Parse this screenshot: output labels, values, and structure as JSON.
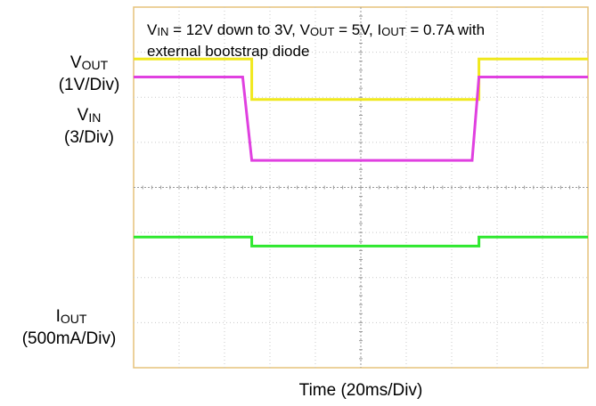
{
  "chart_data": {
    "type": "line",
    "annotation": {
      "line1": {
        "parts": [
          {
            "t": "V"
          },
          {
            "sub": "IN"
          },
          {
            "t": " = 12V down to 3V, V"
          },
          {
            "sub": "OUT"
          },
          {
            "t": " = 5V, I"
          },
          {
            "sub": "OUT"
          },
          {
            "t": " = 0.7A with"
          }
        ]
      },
      "line2": "external bootstrap diode"
    },
    "xlabel": "Time (20ms/Div)",
    "x_divisions": 10,
    "y_divisions": 8,
    "grid": true,
    "series": [
      {
        "id": "vout",
        "label_main": "V",
        "label_sub": "OUT",
        "label_scale": "(1V/Div)",
        "color": "#f0e81c",
        "points": [
          [
            0,
            6.85
          ],
          [
            2.6,
            6.85
          ],
          [
            2.6,
            5.95
          ],
          [
            7.6,
            5.95
          ],
          [
            7.6,
            6.85
          ],
          [
            10,
            6.85
          ]
        ]
      },
      {
        "id": "vin",
        "label_main": "V",
        "label_sub": "IN",
        "label_scale": "(3/Div)",
        "color": "#e040e0",
        "points": [
          [
            0,
            6.45
          ],
          [
            2.4,
            6.45
          ],
          [
            2.6,
            4.6
          ],
          [
            7.45,
            4.6
          ],
          [
            7.6,
            6.45
          ],
          [
            10,
            6.45
          ]
        ]
      },
      {
        "id": "iout",
        "label_main": "I",
        "label_sub": "OUT",
        "label_scale": "(500mA/Div)",
        "color": "#2ee82e",
        "points": [
          [
            0,
            2.9
          ],
          [
            2.6,
            2.9
          ],
          [
            2.6,
            2.7
          ],
          [
            7.6,
            2.7
          ],
          [
            7.6,
            2.9
          ],
          [
            10,
            2.9
          ]
        ]
      }
    ]
  }
}
